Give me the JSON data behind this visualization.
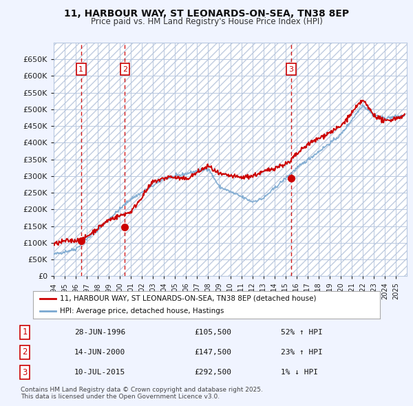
{
  "title": "11, HARBOUR WAY, ST LEONARDS-ON-SEA, TN38 8EP",
  "subtitle": "Price paid vs. HM Land Registry's House Price Index (HPI)",
  "bg_color": "#f0f4ff",
  "plot_bg_color": "#dde8f5",
  "hatch_color": "#c0cce0",
  "grid_color": "#b8c8e0",
  "ylabel_color": "#222222",
  "ylim": [
    0,
    700000
  ],
  "yticks": [
    0,
    50000,
    100000,
    150000,
    200000,
    250000,
    300000,
    350000,
    400000,
    450000,
    500000,
    550000,
    600000,
    650000
  ],
  "xstart": 1994,
  "xend": 2026,
  "sale_points": [
    {
      "year": 1996.48,
      "price": 105500,
      "label": "1"
    },
    {
      "year": 2000.45,
      "price": 147500,
      "label": "2"
    },
    {
      "year": 2015.52,
      "price": 292500,
      "label": "3"
    }
  ],
  "vline_years": [
    1996.48,
    2000.45,
    2015.52
  ],
  "legend_entries": [
    "11, HARBOUR WAY, ST LEONARDS-ON-SEA, TN38 8EP (detached house)",
    "HPI: Average price, detached house, Hastings"
  ],
  "table_rows": [
    {
      "num": "1",
      "date": "28-JUN-1996",
      "price": "£105,500",
      "change": "52% ↑ HPI"
    },
    {
      "num": "2",
      "date": "14-JUN-2000",
      "price": "£147,500",
      "change": "23% ↑ HPI"
    },
    {
      "num": "3",
      "date": "10-JUL-2015",
      "price": "£292,500",
      "change": "1% ↓ HPI"
    }
  ],
  "footnote": "Contains HM Land Registry data © Crown copyright and database right 2025.\nThis data is licensed under the Open Government Licence v3.0.",
  "red_line_color": "#cc0000",
  "blue_line_color": "#7aa8d0",
  "sale_dot_color": "#cc0000",
  "label_box_color": "#cc0000"
}
